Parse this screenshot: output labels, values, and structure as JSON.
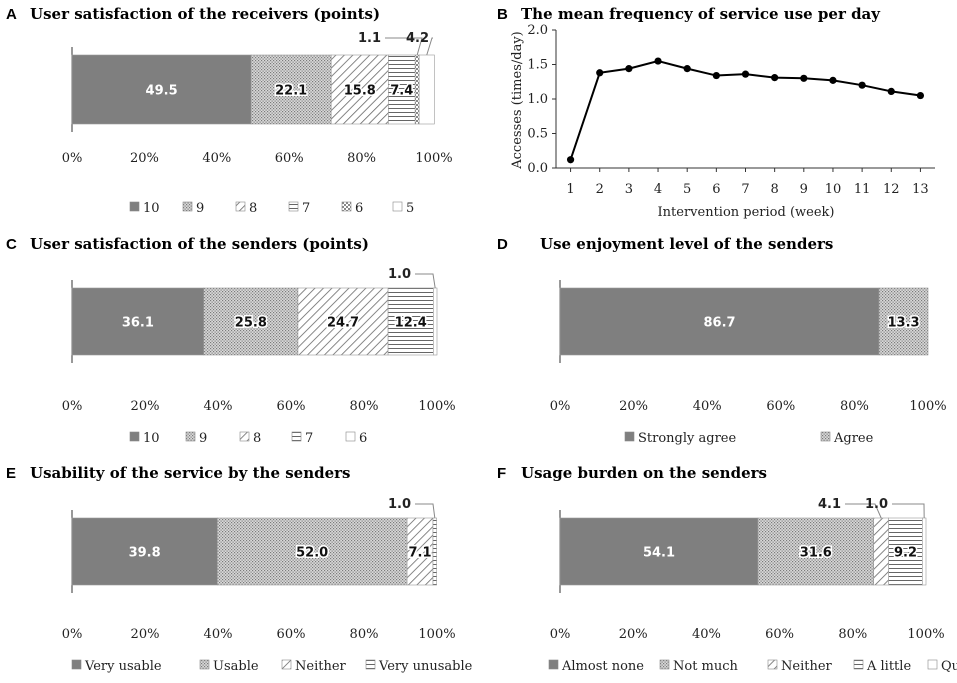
{
  "colors": {
    "dark": "#7f7f7f",
    "dot": "#a9a9a9",
    "diag": "#ffffff",
    "horiz": "#ffffff",
    "check": "#ffffff",
    "white": "#ffffff",
    "text_on_dark": "#ffffff",
    "line": "#000000"
  },
  "chart_data": [
    {
      "panel": "A",
      "type": "stacked-bar",
      "title": "User satisfaction of the receivers (points)",
      "xlim": [
        0,
        100
      ],
      "xticks": [
        "0%",
        "20%",
        "40%",
        "60%",
        "80%",
        "100%"
      ],
      "segments": [
        {
          "name": "10",
          "value": 49.5,
          "pattern": "dark",
          "label": "49.5"
        },
        {
          "name": "9",
          "value": 22.1,
          "pattern": "dot",
          "label": "22.1"
        },
        {
          "name": "8",
          "value": 15.8,
          "pattern": "diag",
          "label": "15.8"
        },
        {
          "name": "7",
          "value": 7.4,
          "pattern": "horiz",
          "label": "7.4"
        },
        {
          "name": "6",
          "value": 1.1,
          "pattern": "check",
          "label": "1.1",
          "outside": true
        },
        {
          "name": "5",
          "value": 4.2,
          "pattern": "white",
          "label": "4.2",
          "outside": true
        }
      ]
    },
    {
      "panel": "B",
      "type": "line",
      "title": "The mean frequency of service use per day",
      "xlabel": "Intervention  period (week)",
      "ylabel": "Accesses  (times/day)",
      "x": [
        1,
        2,
        3,
        4,
        5,
        6,
        7,
        8,
        9,
        10,
        11,
        12,
        13
      ],
      "y": [
        0.12,
        1.38,
        1.44,
        1.55,
        1.44,
        1.34,
        1.36,
        1.31,
        1.3,
        1.27,
        1.2,
        1.11,
        1.05
      ],
      "ylim": [
        0,
        2.0
      ],
      "yticks": [
        "0.0",
        "0.5",
        "1.0",
        "1.5",
        "2.0"
      ],
      "xticks": [
        "1",
        "2",
        "3",
        "4",
        "5",
        "6",
        "7",
        "8",
        "9",
        "10",
        "11",
        "12",
        "13"
      ]
    },
    {
      "panel": "C",
      "type": "stacked-bar",
      "title": "User satisfaction of the senders (points)",
      "xlim": [
        0,
        100
      ],
      "xticks": [
        "0%",
        "20%",
        "40%",
        "60%",
        "80%",
        "100%"
      ],
      "segments": [
        {
          "name": "10",
          "value": 36.1,
          "pattern": "dark",
          "label": "36.1"
        },
        {
          "name": "9",
          "value": 25.8,
          "pattern": "dot",
          "label": "25.8"
        },
        {
          "name": "8",
          "value": 24.7,
          "pattern": "diag",
          "label": "24.7"
        },
        {
          "name": "7",
          "value": 12.4,
          "pattern": "horiz",
          "label": "12.4"
        },
        {
          "name": "6",
          "value": 1.0,
          "pattern": "white",
          "label": "1.0",
          "outside": true
        }
      ]
    },
    {
      "panel": "D",
      "type": "stacked-bar",
      "title": "Use enjoyment level of the senders",
      "xlim": [
        0,
        100
      ],
      "xticks": [
        "0%",
        "20%",
        "40%",
        "60%",
        "80%",
        "100%"
      ],
      "segments": [
        {
          "name": "Strongly agree",
          "value": 86.7,
          "pattern": "dark",
          "label": "86.7"
        },
        {
          "name": "Agree",
          "value": 13.3,
          "pattern": "dot",
          "label": "13.3"
        }
      ]
    },
    {
      "panel": "E",
      "type": "stacked-bar",
      "title": "Usability of the service by the senders",
      "xlim": [
        0,
        100
      ],
      "xticks": [
        "0%",
        "20%",
        "40%",
        "60%",
        "80%",
        "100%"
      ],
      "segments": [
        {
          "name": "Very usable",
          "value": 39.8,
          "pattern": "dark",
          "label": "39.8"
        },
        {
          "name": "Usable",
          "value": 52.0,
          "pattern": "dot",
          "label": "52.0"
        },
        {
          "name": "Neither",
          "value": 7.1,
          "pattern": "diag",
          "label": "7.1"
        },
        {
          "name": "Very unusable",
          "value": 1.0,
          "pattern": "horiz",
          "label": "1.0",
          "outside": true
        }
      ]
    },
    {
      "panel": "F",
      "type": "stacked-bar",
      "title": "Usage burden on the senders",
      "xlim": [
        0,
        100
      ],
      "xticks": [
        "0%",
        "20%",
        "40%",
        "60%",
        "80%",
        "100%"
      ],
      "segments": [
        {
          "name": "Almost none",
          "value": 54.1,
          "pattern": "dark",
          "label": "54.1"
        },
        {
          "name": "Not much",
          "value": 31.6,
          "pattern": "dot",
          "label": "31.6"
        },
        {
          "name": "Neither",
          "value": 4.1,
          "pattern": "diag",
          "label": "4.1",
          "outside": true
        },
        {
          "name": "A little",
          "value": 9.2,
          "pattern": "horiz",
          "label": "9.2"
        },
        {
          "name": "Quite",
          "value": 1.0,
          "pattern": "white",
          "label": "1.0",
          "outside": true
        }
      ]
    }
  ]
}
